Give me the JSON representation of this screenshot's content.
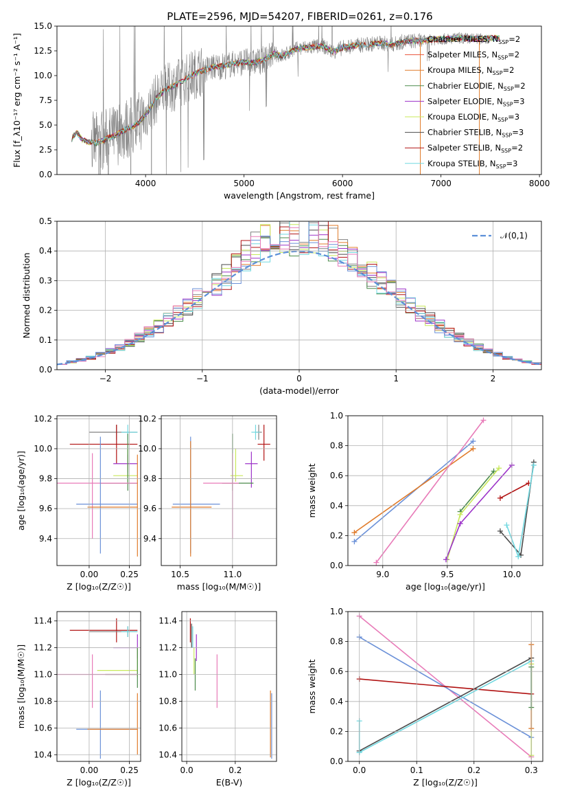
{
  "figure_title": "PLATE=2596, MJD=54207, FIBERID=0261, z=0.176",
  "colors": {
    "chabrier_miles": "#808080",
    "salpeter_miles": "#e8533a",
    "kroupa_miles": "#e07b2a",
    "chabrier_elodie": "#4a8a4a",
    "salpeter_elodie": "#9b30c8",
    "kroupa_elodie": "#c8e85a",
    "chabrier_stelib": "#4a4a4a",
    "salpeter_stelib": "#b01010",
    "kroupa_stelib": "#70d8e0",
    "chabrier_miles_b": "#6a90d8",
    "salpeter_miles_b": "#e87ab8",
    "gauss": "#5b8fd8"
  },
  "chart_data": [
    {
      "id": "spectrum",
      "type": "line",
      "xlabel": "wavelength [Angstrom, rest frame]",
      "ylabel": "Flux [f_λ10⁻¹⁷ erg cm⁻² s⁻¹ A⁻¹]",
      "xlim": [
        3100,
        8020
      ],
      "ylim": [
        0,
        15
      ],
      "xticks": [
        "4000",
        "5000",
        "6000",
        "7000",
        "8000"
      ],
      "yticks": [
        "0.0",
        "2.5",
        "5.0",
        "7.5",
        "10.0",
        "12.5",
        "15.0"
      ],
      "grid": false,
      "legend": "top-right",
      "legend_entries": [
        "Chabrier MILES, N_SSP=2",
        "Salpeter MILES, N_SSP=2",
        "Kroupa MILES, N_SSP=2",
        "Chabrier ELODIE, N_SSP=2",
        "Salpeter ELODIE, N_SSP=3",
        "Kroupa ELODIE, N_SSP=3",
        "Chabrier STELIB, N_SSP=3",
        "Salpeter STELIB, N_SSP=2",
        "Kroupa STELIB, N_SSP=3"
      ],
      "continuum": [
        [
          3250,
          3.6
        ],
        [
          3300,
          4.3
        ],
        [
          3350,
          3.6
        ],
        [
          3400,
          3.3
        ],
        [
          3500,
          3.2
        ],
        [
          3600,
          3.6
        ],
        [
          3700,
          4.0
        ],
        [
          3800,
          4.6
        ],
        [
          3900,
          5.0
        ],
        [
          4000,
          6.0
        ],
        [
          4100,
          7.6
        ],
        [
          4200,
          8.6
        ],
        [
          4300,
          9.0
        ],
        [
          4400,
          9.6
        ],
        [
          4500,
          10.2
        ],
        [
          4600,
          10.6
        ],
        [
          4700,
          10.9
        ],
        [
          4800,
          11.0
        ],
        [
          4900,
          11.2
        ],
        [
          5000,
          11.4
        ],
        [
          5100,
          11.3
        ],
        [
          5200,
          11.6
        ],
        [
          5300,
          12.2
        ],
        [
          5400,
          12.0
        ],
        [
          5500,
          12.6
        ],
        [
          5600,
          12.8
        ],
        [
          5700,
          12.9
        ],
        [
          5800,
          13.0
        ],
        [
          5900,
          12.4
        ],
        [
          6000,
          12.8
        ],
        [
          6100,
          13.0
        ],
        [
          6200,
          13.1
        ],
        [
          6300,
          13.2
        ],
        [
          6400,
          13.3
        ],
        [
          6500,
          13.1
        ],
        [
          6600,
          13.4
        ],
        [
          6700,
          13.5
        ],
        [
          6800,
          13.5
        ],
        [
          6900,
          13.6
        ],
        [
          7000,
          13.7
        ],
        [
          7100,
          13.7
        ],
        [
          7200,
          13.8
        ],
        [
          7300,
          13.7
        ],
        [
          7400,
          13.7
        ],
        [
          7500,
          13.8
        ]
      ]
    },
    {
      "id": "residuals",
      "type": "bar",
      "xlabel": "(data-model)/error",
      "ylabel": "Normed distribution",
      "xlim": [
        -2.5,
        2.5
      ],
      "ylim": [
        0,
        0.5
      ],
      "xticks": [
        "−2",
        "−1",
        "0",
        "1",
        "2"
      ],
      "yticks": [
        "0.0",
        "0.1",
        "0.2",
        "0.3",
        "0.4",
        "0.5"
      ],
      "grid": true,
      "legend": "top-right",
      "legend_entries": [
        "𝒩(0,1)"
      ],
      "bin_width": 0.1
    },
    {
      "id": "age_vs_Z",
      "type": "scatter",
      "xlabel": "Z [log₁₀(Z/Z☉)]",
      "ylabel": "age [log₁₀(age/yr)]",
      "xlim": [
        -0.2,
        0.32
      ],
      "ylim": [
        9.22,
        10.22
      ],
      "xticks": [
        "0.00",
        "0.25"
      ],
      "yticks": [
        "9.4",
        "9.6",
        "9.8",
        "10.0",
        "10.2"
      ],
      "grid": true,
      "points": [
        {
          "c": "chabrier_miles",
          "x": 0.17,
          "y": 10.11,
          "xe": [
            0.0,
            0.3
          ],
          "ye": [
            10.06,
            10.16
          ]
        },
        {
          "c": "kroupa_stelib",
          "x": 0.24,
          "y": 10.11,
          "xe": [
            0.2,
            0.3
          ],
          "ye": [
            10.06,
            10.16
          ]
        },
        {
          "c": "salpeter_stelib",
          "x": 0.17,
          "y": 10.03,
          "xe": [
            -0.12,
            0.3
          ],
          "ye": [
            9.9,
            10.16
          ]
        },
        {
          "c": "salpeter_elodie",
          "x": 0.24,
          "y": 9.9,
          "xe": [
            0.15,
            0.3
          ],
          "ye": [
            9.84,
            9.96
          ]
        },
        {
          "c": "kroupa_elodie",
          "x": 0.24,
          "y": 9.82,
          "xe": [
            0.15,
            0.3
          ],
          "ye": [
            9.78,
            10.0
          ]
        },
        {
          "c": "chabrier_elodie",
          "x": 0.24,
          "y": 9.77,
          "xe": [
            0.07,
            0.3
          ],
          "ye": [
            9.72,
            10.1
          ]
        },
        {
          "c": "salpeter_miles_b",
          "x": 0.02,
          "y": 9.77,
          "xe": [
            -0.2,
            0.3
          ],
          "ye": [
            9.4,
            9.97
          ]
        },
        {
          "c": "chabrier_miles_b",
          "x": 0.07,
          "y": 9.63,
          "xe": [
            -0.08,
            0.3
          ],
          "ye": [
            9.3,
            10.08
          ]
        },
        {
          "c": "kroupa_miles",
          "x": 0.3,
          "y": 9.61,
          "xe": [
            -0.01,
            0.3
          ],
          "ye": [
            9.28,
            9.96
          ]
        }
      ]
    },
    {
      "id": "age_vs_mass",
      "type": "scatter",
      "xlabel": "mass [log₁₀(M/M☉)]",
      "ylabel": "",
      "xlim": [
        10.32,
        11.42
      ],
      "ylim": [
        9.22,
        10.22
      ],
      "xticks": [
        "10.5",
        "11.0"
      ],
      "yticks": [
        "9.4",
        "9.6",
        "9.8",
        "10.0",
        "10.2"
      ],
      "grid": true,
      "points": [
        {
          "c": "chabrier_miles",
          "x": 11.25,
          "y": 10.11,
          "xe": [
            11.22,
            11.28
          ],
          "ye": [
            10.06,
            10.16
          ]
        },
        {
          "c": "kroupa_stelib",
          "x": 11.22,
          "y": 10.11,
          "xe": [
            11.18,
            11.26
          ],
          "ye": [
            10.06,
            10.16
          ]
        },
        {
          "c": "salpeter_stelib",
          "x": 11.3,
          "y": 10.03,
          "xe": [
            11.24,
            11.36
          ],
          "ye": [
            9.92,
            10.16
          ]
        },
        {
          "c": "salpeter_elodie",
          "x": 11.18,
          "y": 9.9,
          "xe": [
            11.12,
            11.24
          ],
          "ye": [
            9.74,
            9.98
          ]
        },
        {
          "c": "kroupa_elodie",
          "x": 11.03,
          "y": 9.82,
          "xe": [
            10.98,
            11.1
          ],
          "ye": [
            9.78,
            10.0
          ]
        },
        {
          "c": "chabrier_elodie",
          "x": 11.0,
          "y": 9.77,
          "xe": [
            10.9,
            11.2
          ],
          "ye": [
            9.72,
            10.1
          ]
        },
        {
          "c": "salpeter_miles_b",
          "x": 11.0,
          "y": 9.77,
          "xe": [
            10.72,
            11.06
          ],
          "ye": [
            9.4,
            9.97
          ]
        },
        {
          "c": "chabrier_miles_b",
          "x": 10.6,
          "y": 9.63,
          "xe": [
            10.43,
            10.88
          ],
          "ye": [
            9.3,
            10.08
          ]
        },
        {
          "c": "kroupa_miles",
          "x": 10.6,
          "y": 9.61,
          "xe": [
            10.42,
            10.8
          ],
          "ye": [
            9.28,
            10.05
          ]
        }
      ]
    },
    {
      "id": "weight_vs_age",
      "type": "line",
      "xlabel": "age [log₁₀(age/yr)]",
      "ylabel": "mass weight",
      "xlim": [
        8.73,
        10.24
      ],
      "ylim": [
        0,
        1
      ],
      "xticks": [
        "9.0",
        "9.5",
        "10.0"
      ],
      "yticks": [
        "0.0",
        "0.2",
        "0.4",
        "0.6",
        "0.8",
        "1.0"
      ],
      "grid": true,
      "series": [
        {
          "c": "chabrier_miles_b",
          "pts": [
            [
              8.78,
              0.16
            ],
            [
              9.7,
              0.83
            ]
          ]
        },
        {
          "c": "kroupa_miles",
          "pts": [
            [
              8.78,
              0.22
            ],
            [
              9.7,
              0.78
            ]
          ]
        },
        {
          "c": "salpeter_miles_b",
          "pts": [
            [
              8.95,
              0.02
            ],
            [
              9.78,
              0.97
            ]
          ]
        },
        {
          "c": "chabrier_elodie",
          "pts": [
            [
              9.6,
              0.36
            ],
            [
              9.86,
              0.63
            ]
          ]
        },
        {
          "c": "kroupa_elodie",
          "pts": [
            [
              9.5,
              0.04
            ],
            [
              9.6,
              0.34
            ],
            [
              9.9,
              0.65
            ]
          ]
        },
        {
          "c": "salpeter_elodie",
          "pts": [
            [
              9.49,
              0.04
            ],
            [
              9.6,
              0.28
            ],
            [
              10.0,
              0.67
            ]
          ]
        },
        {
          "c": "salpeter_stelib",
          "pts": [
            [
              9.91,
              0.45
            ],
            [
              10.13,
              0.55
            ]
          ]
        },
        {
          "c": "chabrier_stelib",
          "pts": [
            [
              9.91,
              0.23
            ],
            [
              10.07,
              0.07
            ],
            [
              10.17,
              0.69
            ]
          ]
        },
        {
          "c": "kroupa_stelib",
          "pts": [
            [
              9.96,
              0.27
            ],
            [
              10.05,
              0.06
            ],
            [
              10.17,
              0.67
            ]
          ]
        }
      ]
    },
    {
      "id": "mass_vs_Z",
      "type": "scatter",
      "xlabel": "Z [log₁₀(Z/Z☉)]",
      "ylabel": "mass [log₁₀(M/M☉)]",
      "xlim": [
        -0.2,
        0.32
      ],
      "ylim": [
        10.35,
        11.47
      ],
      "xticks": [
        "0.00",
        "0.25"
      ],
      "yticks": [
        "10.4",
        "10.6",
        "10.8",
        "11.0",
        "11.2",
        "11.4"
      ],
      "grid": true,
      "points": [
        {
          "c": "salpeter_stelib",
          "x": 0.17,
          "y": 11.33,
          "xe": [
            -0.12,
            0.3
          ],
          "ye": [
            11.24,
            11.42
          ]
        },
        {
          "c": "chabrier_miles",
          "x": 0.24,
          "y": 11.32,
          "xe": [
            0.0,
            0.3
          ],
          "ye": [
            11.28,
            11.36
          ]
        },
        {
          "c": "kroupa_stelib",
          "x": 0.24,
          "y": 11.32,
          "xe": [
            0.2,
            0.3
          ],
          "ye": [
            11.28,
            11.36
          ]
        },
        {
          "c": "salpeter_elodie",
          "x": 0.3,
          "y": 11.2,
          "xe": [
            0.15,
            0.3
          ],
          "ye": [
            11.12,
            11.3
          ]
        },
        {
          "c": "kroupa_elodie",
          "x": 0.3,
          "y": 11.03,
          "xe": [
            0.05,
            0.3
          ],
          "ye": [
            10.98,
            11.2
          ]
        },
        {
          "c": "chabrier_elodie",
          "x": 0.3,
          "y": 11.0,
          "xe": [
            0.1,
            0.3
          ],
          "ye": [
            10.9,
            11.2
          ]
        },
        {
          "c": "salpeter_miles_b",
          "x": 0.02,
          "y": 11.0,
          "xe": [
            -0.2,
            0.3
          ],
          "ye": [
            10.75,
            11.15
          ]
        },
        {
          "c": "chabrier_miles_b",
          "x": 0.07,
          "y": 10.59,
          "xe": [
            -0.08,
            0.3
          ],
          "ye": [
            10.37,
            10.88
          ]
        },
        {
          "c": "kroupa_miles",
          "x": 0.3,
          "y": 10.59,
          "xe": [
            -0.01,
            0.3
          ],
          "ye": [
            10.4,
            10.86
          ]
        }
      ]
    },
    {
      "id": "mass_vs_ebv",
      "type": "scatter",
      "xlabel": "E(B-V)",
      "ylabel": "",
      "xlim": [
        -0.02,
        0.37
      ],
      "ylim": [
        10.35,
        11.47
      ],
      "xticks": [
        "0.0",
        "0.2"
      ],
      "yticks": [
        "10.4",
        "10.6",
        "10.8",
        "11.0",
        "11.2",
        "11.4"
      ],
      "grid": true,
      "points": [
        {
          "c": "salpeter_stelib",
          "x": 0.015,
          "y": 11.33,
          "xe": [
            0.015,
            0.015
          ],
          "ye": [
            11.24,
            11.42
          ]
        },
        {
          "c": "chabrier_stelib",
          "x": 0.02,
          "y": 11.3,
          "xe": [
            0.02,
            0.02
          ],
          "ye": [
            11.2,
            11.38
          ]
        },
        {
          "c": "kroupa_stelib",
          "x": 0.025,
          "y": 11.3,
          "xe": [
            0.025,
            0.025
          ],
          "ye": [
            11.2,
            11.36
          ]
        },
        {
          "c": "salpeter_elodie",
          "x": 0.04,
          "y": 11.2,
          "xe": [
            0.04,
            0.04
          ],
          "ye": [
            11.1,
            11.3
          ]
        },
        {
          "c": "kroupa_elodie",
          "x": 0.03,
          "y": 11.1,
          "xe": [
            0.03,
            0.03
          ],
          "ye": [
            11.0,
            11.2
          ]
        },
        {
          "c": "chabrier_elodie",
          "x": 0.035,
          "y": 11.0,
          "xe": [
            0.035,
            0.035
          ],
          "ye": [
            10.88,
            11.12
          ]
        },
        {
          "c": "salpeter_miles_b",
          "x": 0.125,
          "y": 10.98,
          "xe": [
            0.125,
            0.125
          ],
          "ye": [
            10.75,
            11.15
          ]
        },
        {
          "c": "kroupa_miles",
          "x": 0.345,
          "y": 10.62,
          "xe": [
            0.345,
            0.345
          ],
          "ye": [
            10.38,
            10.88
          ]
        },
        {
          "c": "chabrier_miles_b",
          "x": 0.35,
          "y": 10.62,
          "xe": [
            0.35,
            0.35
          ],
          "ye": [
            10.37,
            10.86
          ]
        }
      ]
    },
    {
      "id": "weight_vs_Z",
      "type": "line",
      "xlabel": "Z [log₁₀(Z/Z☉)]",
      "ylabel": "mass weight",
      "xlim": [
        -0.02,
        0.32
      ],
      "ylim": [
        0,
        1
      ],
      "xticks": [
        "0.0",
        "0.1",
        "0.2",
        "0.3"
      ],
      "yticks": [
        "0.0",
        "0.2",
        "0.4",
        "0.6",
        "0.8",
        "1.0"
      ],
      "grid": true,
      "series": [
        {
          "c": "salpeter_miles_b",
          "pts": [
            [
              0,
              0.97
            ],
            [
              0.3,
              0.03
            ]
          ]
        },
        {
          "c": "chabrier_miles_b",
          "pts": [
            [
              0,
              0.83
            ],
            [
              0.3,
              0.16
            ]
          ]
        },
        {
          "c": "salpeter_stelib",
          "pts": [
            [
              0,
              0.55
            ],
            [
              0.3,
              0.45
            ]
          ]
        },
        {
          "c": "chabrier_stelib",
          "pts": [
            [
              0,
              0.07
            ],
            [
              0.3,
              0.69
            ]
          ]
        },
        {
          "c": "kroupa_stelib",
          "pts": [
            [
              0,
              0.06
            ],
            [
              0.3,
              0.67
            ]
          ]
        },
        {
          "c": "kroupa_stelib",
          "pts": [
            [
              0,
              0.27
            ],
            [
              0,
              0.06
            ]
          ]
        },
        {
          "c": "kroupa_elodie",
          "pts": [
            [
              0.3,
              0.04
            ],
            [
              0.3,
              0.65
            ]
          ]
        },
        {
          "c": "kroupa_miles",
          "pts": [
            [
              0.3,
              0.22
            ],
            [
              0.3,
              0.78
            ]
          ]
        },
        {
          "c": "chabrier_elodie",
          "pts": [
            [
              0.3,
              0.36
            ],
            [
              0.3,
              0.63
            ]
          ]
        }
      ]
    }
  ]
}
